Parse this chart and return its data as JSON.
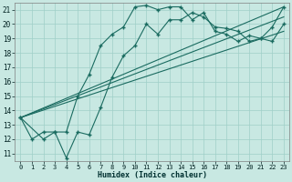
{
  "xlabel": "Humidex (Indice chaleur)",
  "xlim": [
    -0.5,
    23.5
  ],
  "ylim": [
    10.5,
    21.5
  ],
  "xticks": [
    0,
    1,
    2,
    3,
    4,
    5,
    6,
    7,
    8,
    9,
    10,
    11,
    12,
    13,
    14,
    15,
    16,
    17,
    18,
    19,
    20,
    21,
    22,
    23
  ],
  "yticks": [
    11,
    12,
    13,
    14,
    15,
    16,
    17,
    18,
    19,
    20,
    21
  ],
  "bg_color": "#c8e8e2",
  "grid_color": "#9fcfc8",
  "line_color": "#1a6b60",
  "line1_x": [
    0,
    1,
    2,
    3,
    4,
    5,
    6,
    7,
    8,
    9,
    10,
    11,
    12,
    13,
    14,
    15,
    16,
    17,
    18,
    19,
    20,
    21,
    22,
    23
  ],
  "line1_y": [
    13.5,
    12.0,
    12.5,
    12.5,
    10.7,
    12.5,
    12.3,
    14.2,
    16.3,
    17.8,
    18.5,
    20.0,
    19.3,
    20.3,
    20.3,
    20.8,
    20.5,
    19.8,
    19.7,
    19.5,
    18.8,
    19.0,
    18.8,
    20.0
  ],
  "line2_x": [
    0,
    2,
    3,
    4,
    5,
    6,
    7,
    8,
    9,
    10,
    11,
    12,
    13,
    14,
    15,
    16,
    17,
    18,
    19,
    20,
    21,
    22,
    23
  ],
  "line2_y": [
    13.5,
    12.0,
    12.5,
    12.5,
    15.0,
    16.5,
    18.5,
    19.3,
    19.8,
    21.2,
    21.3,
    21.0,
    21.2,
    21.2,
    20.3,
    20.8,
    19.5,
    19.3,
    18.8,
    19.2,
    19.0,
    19.8,
    21.2
  ],
  "diag_lines": [
    [
      0,
      13.5,
      23,
      21.2
    ],
    [
      0,
      13.5,
      23,
      20.5
    ],
    [
      0,
      13.5,
      23,
      19.5
    ]
  ]
}
